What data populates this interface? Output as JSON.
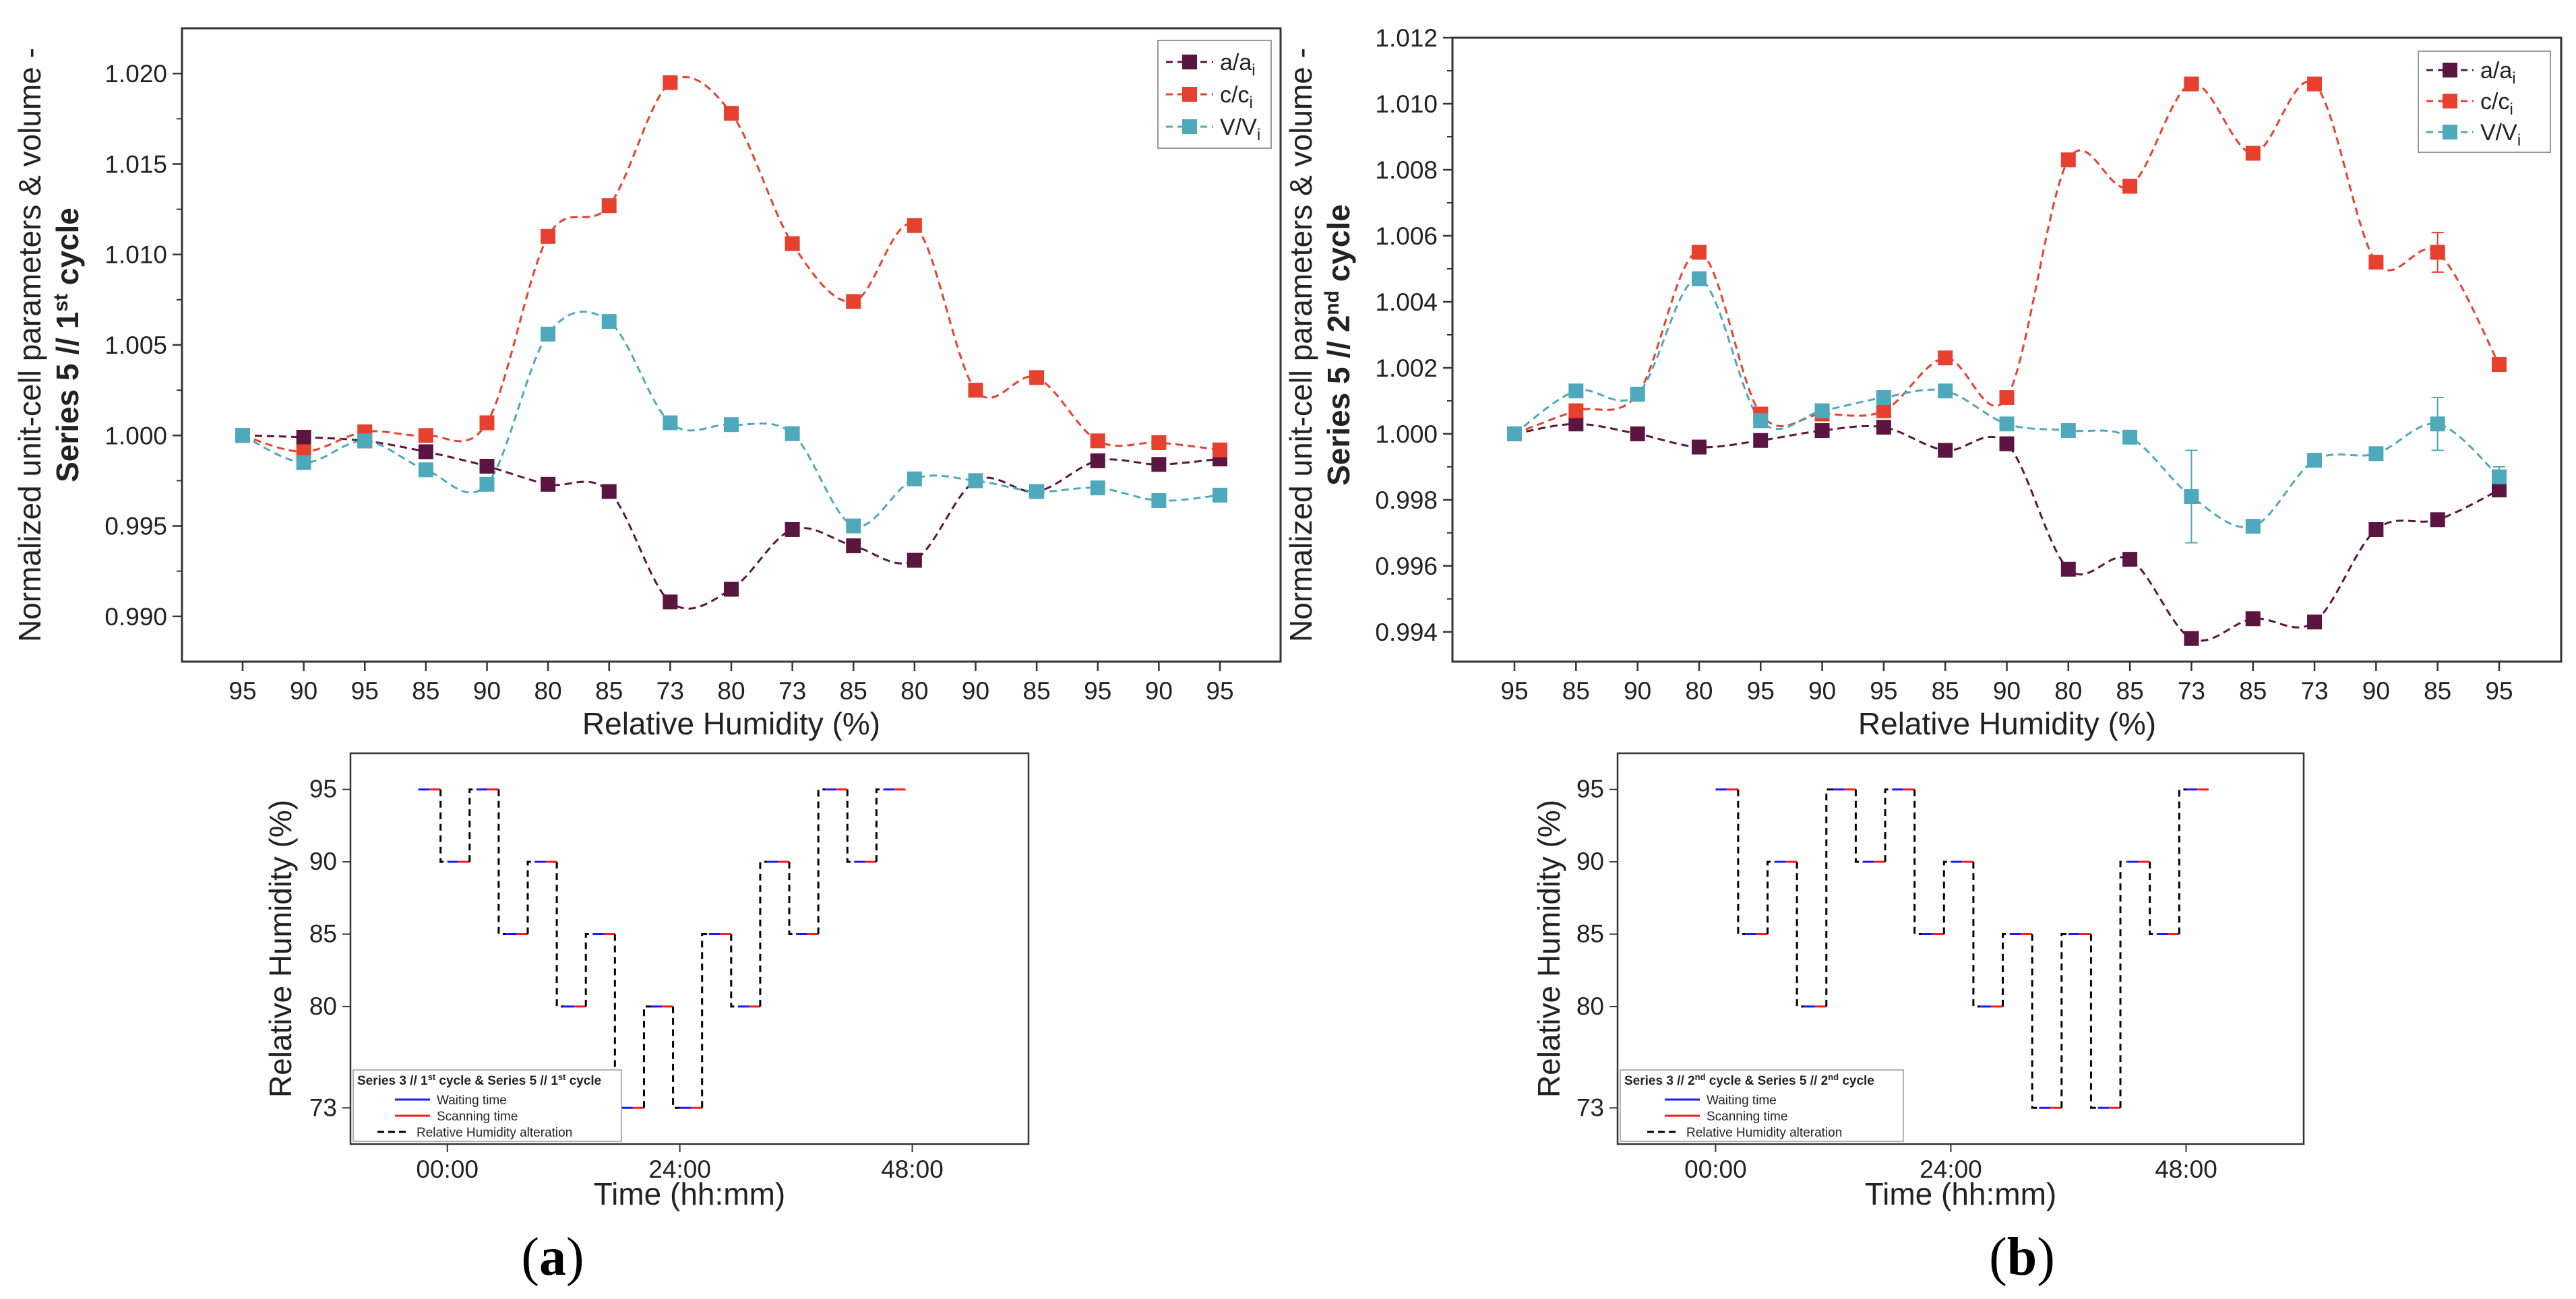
{
  "colors": {
    "a": "#5a1540",
    "c": "#e8402f",
    "v": "#4ea9bc",
    "wait": "#1a1aff",
    "scan": "#ff1a1a",
    "alt": "#000000"
  },
  "panels": [
    {
      "label_paren_open": "(",
      "label_letter": "a",
      "label_paren_close": ")",
      "chart_data": {
        "type": "line",
        "title": "",
        "xlabel": "Relative Humidity (%)",
        "ylabel_line1": "Normalized unit-cell parameters & volume -",
        "ylabel_line2": "Series 5 // 1st cycle",
        "ylabel_series": "Series 5 // 1",
        "ylabel_sup": "st",
        "ylabel_cycle": " cycle",
        "categories": [
          "95",
          "90",
          "95",
          "85",
          "90",
          "80",
          "85",
          "73",
          "80",
          "73",
          "85",
          "80",
          "90",
          "85",
          "95",
          "90",
          "95"
        ],
        "ylim": [
          0.9875,
          1.0225
        ],
        "yticks": [
          0.99,
          0.995,
          1.0,
          1.005,
          1.01,
          1.015,
          1.02
        ],
        "ytick_labels": [
          "0.990",
          "0.995",
          "1.000",
          "1.005",
          "1.010",
          "1.015",
          "1.020"
        ],
        "series": [
          {
            "name": "a/ai",
            "legend_main": "a/a",
            "legend_sub": "i",
            "color": "#5a1540",
            "values": [
              1.0,
              0.9999,
              0.9997,
              0.9991,
              0.9983,
              0.9973,
              0.9969,
              0.9908,
              0.9915,
              0.9948,
              0.9939,
              0.9931,
              0.9975,
              0.9969,
              0.9986,
              0.9984,
              0.9987
            ],
            "errors": [
              0,
              0,
              0,
              0,
              0,
              0,
              0,
              0,
              0,
              0,
              0,
              0,
              0,
              0,
              0,
              0,
              0
            ]
          },
          {
            "name": "c/ci",
            "legend_main": "c/c",
            "legend_sub": "i",
            "color": "#e8402f",
            "values": [
              1.0,
              0.9991,
              1.0002,
              1.0,
              1.0007,
              1.011,
              1.0127,
              1.0195,
              1.0178,
              1.0106,
              1.0074,
              1.0116,
              1.0025,
              1.0032,
              0.9997,
              0.9996,
              0.9992
            ],
            "errors": [
              0,
              0,
              0,
              0,
              0,
              0,
              0,
              0,
              0,
              0,
              0,
              0,
              0,
              0,
              0,
              0,
              0
            ]
          },
          {
            "name": "V/Vi",
            "legend_main": "V/V",
            "legend_sub": "i",
            "color": "#4ea9bc",
            "values": [
              1.0,
              0.9985,
              0.9997,
              0.9981,
              0.9973,
              1.0056,
              1.0063,
              1.0007,
              1.0006,
              1.0001,
              0.995,
              0.9976,
              0.9975,
              0.9969,
              0.9971,
              0.9964,
              0.9967
            ],
            "errors": [
              0,
              0,
              0,
              0,
              0,
              0,
              0,
              0,
              0,
              0,
              0,
              0,
              0,
              0,
              0,
              0,
              0
            ]
          }
        ]
      },
      "schedule": {
        "type": "line",
        "xlabel": "Time (hh:mm)",
        "ylabel": "Relative Humidity (%)",
        "xticks": [
          0,
          24,
          48
        ],
        "xtick_labels": [
          "00:00",
          "24:00",
          "48:00"
        ],
        "yticks": [
          73,
          80,
          85,
          90,
          95
        ],
        "ytick_labels": [
          "73",
          "80",
          "85",
          "90",
          "95"
        ],
        "xlim": [
          -10,
          60
        ],
        "ylim": [
          70.5,
          97.5
        ],
        "levels": [
          95,
          90,
          95,
          85,
          90,
          80,
          85,
          73,
          80,
          73,
          85,
          80,
          90,
          85,
          95,
          90,
          95
        ],
        "start_hour": -3,
        "step_hours": 3,
        "plateau_hours": 2.3,
        "legend_title": "Series 3 // 1st cycle & Series 5 // 1st cycle",
        "legend_title_a": "Series 3 // 1",
        "legend_title_sup1": "st",
        "legend_title_b": " cycle & Series 5 // 1",
        "legend_title_sup2": "st",
        "legend_title_c": " cycle",
        "legend_wait": "Waiting time",
        "legend_scan": "Scanning time",
        "legend_alt": "Relative Humidity alteration"
      }
    },
    {
      "label_paren_open": "(",
      "label_letter": "b",
      "label_paren_close": ")",
      "chart_data": {
        "type": "line",
        "title": "",
        "xlabel": "Relative Humidity (%)",
        "ylabel_line1": "Normalized unit-cell parameters & volume -",
        "ylabel_line2": "Series 5 // 2nd cycle",
        "ylabel_series": "Series 5 // 2",
        "ylabel_sup": "nd",
        "ylabel_cycle": " cycle",
        "categories": [
          "95",
          "85",
          "90",
          "80",
          "95",
          "90",
          "95",
          "85",
          "90",
          "80",
          "85",
          "73",
          "85",
          "73",
          "90",
          "85",
          "95"
        ],
        "ylim": [
          0.9931,
          1.012
        ],
        "yticks": [
          0.994,
          0.996,
          0.998,
          1.0,
          1.002,
          1.004,
          1.006,
          1.008,
          1.01,
          1.012
        ],
        "ytick_labels": [
          "0.994",
          "0.996",
          "0.998",
          "1.000",
          "1.002",
          "1.004",
          "1.006",
          "1.008",
          "1.010",
          "1.012"
        ],
        "series": [
          {
            "name": "a/ai",
            "legend_main": "a/a",
            "legend_sub": "i",
            "color": "#5a1540",
            "values": [
              1.0,
              1.0003,
              1.0,
              0.9996,
              0.9998,
              1.0001,
              1.0002,
              0.9995,
              0.9997,
              0.9959,
              0.9962,
              0.9938,
              0.9944,
              0.9943,
              0.9971,
              0.9974,
              0.9983
            ],
            "errors": [
              0,
              0,
              0,
              0,
              0,
              0,
              0,
              0,
              0,
              0,
              0,
              0,
              0,
              0,
              0,
              0,
              0.0001
            ]
          },
          {
            "name": "c/ci",
            "legend_main": "c/c",
            "legend_sub": "i",
            "color": "#e8402f",
            "values": [
              1.0,
              1.0007,
              1.0012,
              1.0055,
              1.0006,
              1.0006,
              1.0007,
              1.0023,
              1.0011,
              1.0083,
              1.0075,
              1.0106,
              1.0085,
              1.0106,
              1.0052,
              1.0055,
              1.0021
            ],
            "errors": [
              0,
              0,
              0,
              0,
              0,
              0,
              0,
              0.0002,
              0,
              0.0001,
              0.0001,
              0,
              0,
              0,
              0.0002,
              0.0006,
              0.0002
            ]
          },
          {
            "name": "V/Vi",
            "legend_main": "V/V",
            "legend_sub": "i",
            "color": "#4ea9bc",
            "values": [
              1.0,
              1.0013,
              1.0012,
              1.0047,
              1.0004,
              1.0007,
              1.0011,
              1.0013,
              1.0003,
              1.0001,
              0.9999,
              0.9981,
              0.9972,
              0.9992,
              0.9994,
              1.0003,
              0.9987
            ],
            "errors": [
              0,
              0.0001,
              0,
              0.0001,
              0.0001,
              0.0002,
              0,
              0.0002,
              0,
              0.0001,
              0.0001,
              0.0014,
              0,
              0.0001,
              0.0002,
              0.0008,
              0.0003
            ]
          }
        ]
      },
      "schedule": {
        "type": "line",
        "xlabel": "Time (hh:mm)",
        "ylabel": "Relative Humidity (%)",
        "xticks": [
          0,
          24,
          48
        ],
        "xtick_labels": [
          "00:00",
          "24:00",
          "48:00"
        ],
        "yticks": [
          73,
          80,
          85,
          90,
          95
        ],
        "ytick_labels": [
          "73",
          "80",
          "85",
          "90",
          "95"
        ],
        "xlim": [
          -10,
          60
        ],
        "ylim": [
          70.5,
          97.5
        ],
        "levels": [
          95,
          85,
          90,
          80,
          95,
          90,
          95,
          85,
          90,
          80,
          85,
          73,
          85,
          73,
          90,
          85,
          95
        ],
        "start_hour": 0,
        "step_hours": 3,
        "plateau_hours": 2.3,
        "legend_title": "Series 3 // 2nd cycle & Series 5 // 2nd cycle",
        "legend_title_a": "Series 3 // 2",
        "legend_title_sup1": "nd",
        "legend_title_b": " cycle & Series 5 // 2",
        "legend_title_sup2": "nd",
        "legend_title_c": " cycle",
        "legend_wait": "Waiting time",
        "legend_scan": "Scanning time",
        "legend_alt": "Relative Humidity alteration"
      }
    }
  ]
}
